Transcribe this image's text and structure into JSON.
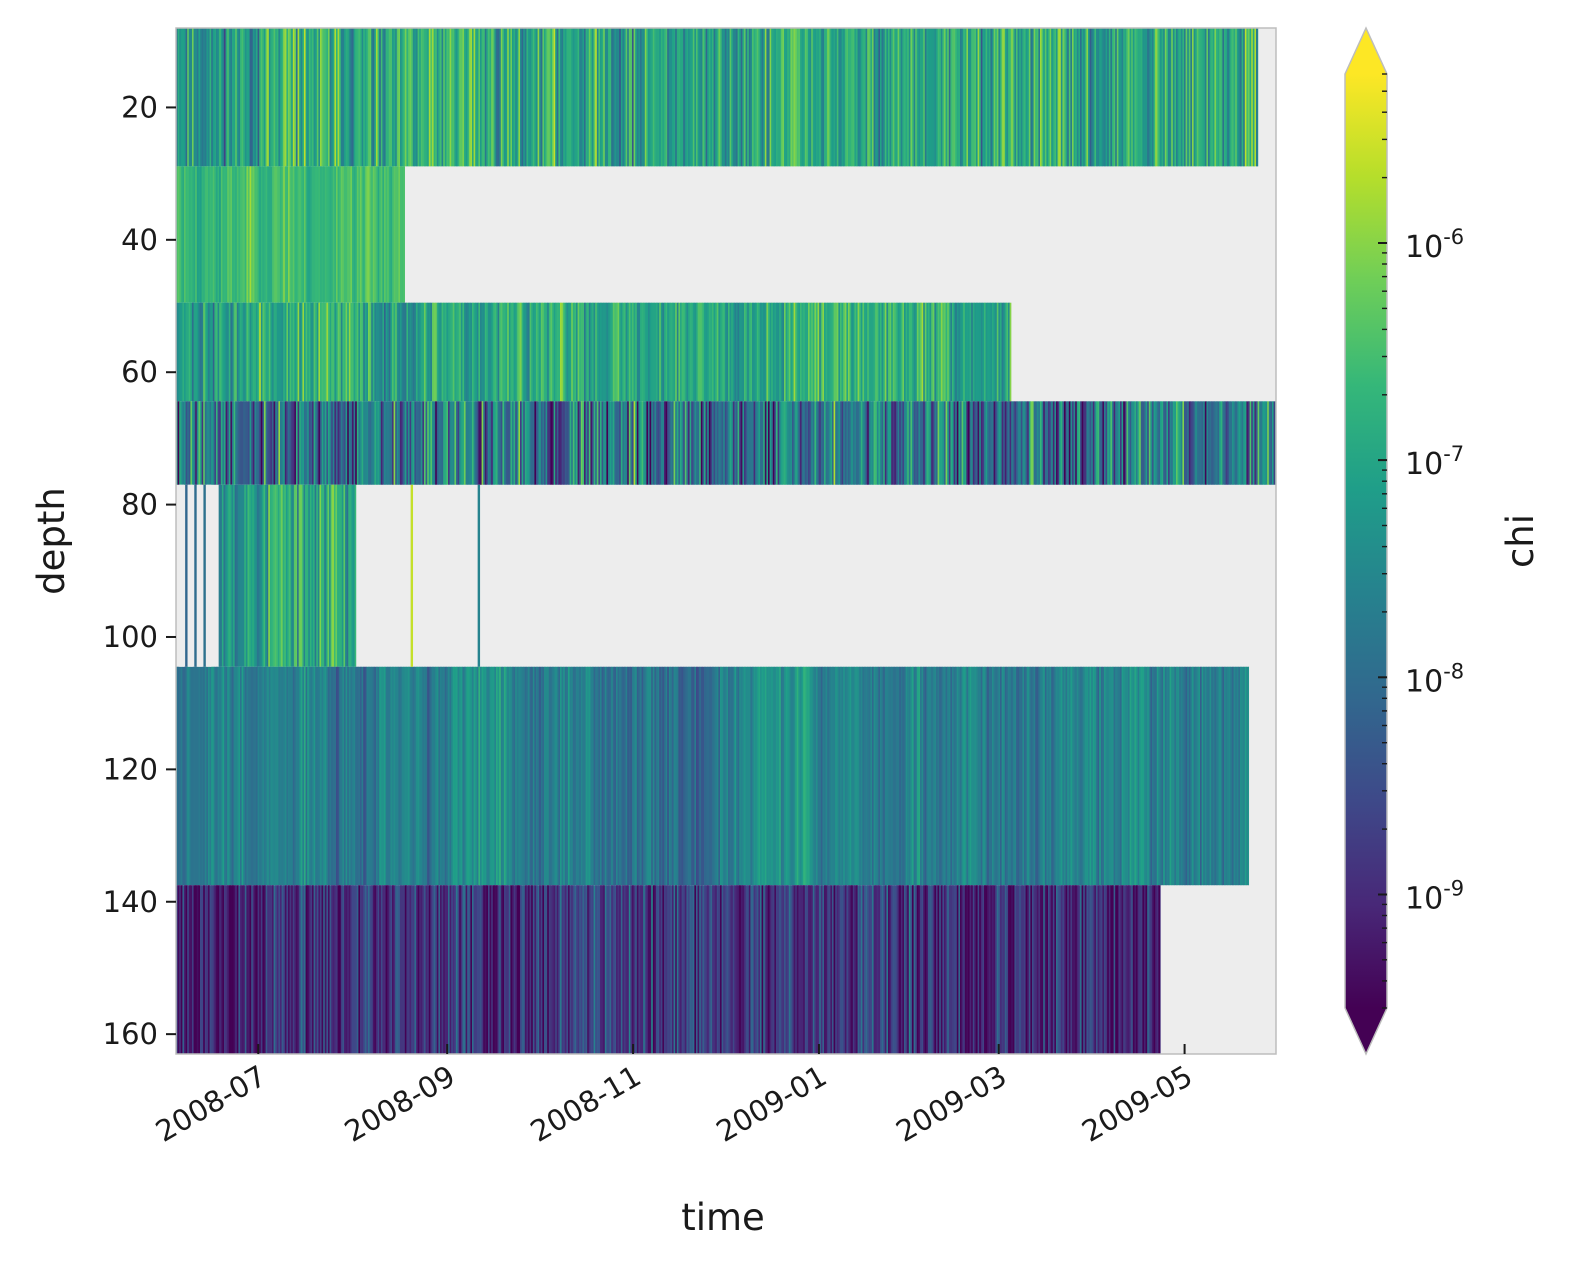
{
  "chart_data": {
    "type": "heatmap",
    "title": "",
    "xlabel": "time",
    "ylabel": "depth",
    "colorbar_label": "chi",
    "colormap": "viridis",
    "color_scale": "log",
    "color_range": [
      3e-10,
      6e-06
    ],
    "colorbar_extend": "both",
    "xlim": [
      "2008-06-04",
      "2009-05-31"
    ],
    "ylim": [
      8,
      163
    ],
    "y_inverted": true,
    "x_ticks": [
      "2008-07",
      "2008-09",
      "2008-11",
      "2009-01",
      "2009-03",
      "2009-05"
    ],
    "x_tick_dates": [
      "2008-07-01",
      "2008-09-01",
      "2008-11-01",
      "2009-01-01",
      "2009-03-01",
      "2009-05-01"
    ],
    "y_ticks": [
      20,
      40,
      60,
      80,
      100,
      120,
      140,
      160
    ],
    "colorbar_ticks": [
      {
        "label": "10",
        "exp": "-9",
        "value": 1e-09
      },
      {
        "label": "10",
        "exp": "-8",
        "value": 1e-08
      },
      {
        "label": "10",
        "exp": "-7",
        "value": 1e-07
      },
      {
        "label": "10",
        "exp": "-6",
        "value": 1e-06
      }
    ],
    "missing_color": "#ededed",
    "bands": [
      {
        "depth_top": 8.0,
        "depth_bottom": 28.9,
        "start": "2008-06-04",
        "end": "2009-05-25",
        "median_log10_chi": -7.0,
        "spread": 0.9,
        "seed": 11
      },
      {
        "depth_top": 28.9,
        "depth_bottom": 49.5,
        "start": "2008-06-04",
        "end": "2008-08-18",
        "median_log10_chi": -6.45,
        "spread": 0.35,
        "seed": 23
      },
      {
        "depth_top": 49.5,
        "depth_bottom": 64.4,
        "start": "2008-06-04",
        "end": "2009-03-05",
        "median_log10_chi": -6.9,
        "spread": 0.7,
        "seed": 37
      },
      {
        "depth_top": 64.4,
        "depth_bottom": 77.0,
        "start": "2008-06-04",
        "end": "2009-05-31",
        "median_log10_chi": -7.9,
        "spread": 1.4,
        "seed": 41
      },
      {
        "depth_top": 77.0,
        "depth_bottom": 104.5,
        "start": "2008-06-18",
        "end": "2008-08-02",
        "median_log10_chi": -6.9,
        "spread": 0.9,
        "seed": 53
      },
      {
        "depth_top": 104.5,
        "depth_bottom": 137.5,
        "start": "2008-06-04",
        "end": "2009-05-22",
        "median_log10_chi": -7.6,
        "spread": 0.45,
        "seed": 67
      },
      {
        "depth_top": 137.5,
        "depth_bottom": 163.0,
        "start": "2008-06-04",
        "end": "2009-04-23",
        "median_log10_chi": -8.9,
        "spread": 0.8,
        "seed": 79
      }
    ],
    "isolated_traces": [
      {
        "depth_top": 77.0,
        "depth_bottom": 104.5,
        "date": "2008-06-07",
        "log10_chi": -8.1
      },
      {
        "depth_top": 77.0,
        "depth_bottom": 104.5,
        "date": "2008-06-10",
        "log10_chi": -8.0
      },
      {
        "depth_top": 77.0,
        "depth_bottom": 104.5,
        "date": "2008-06-13",
        "log10_chi": -7.9
      },
      {
        "depth_top": 77.0,
        "depth_bottom": 104.5,
        "date": "2008-08-20",
        "log10_chi": -5.6
      },
      {
        "depth_top": 77.0,
        "depth_bottom": 104.5,
        "date": "2008-09-11",
        "log10_chi": -7.6
      }
    ]
  }
}
